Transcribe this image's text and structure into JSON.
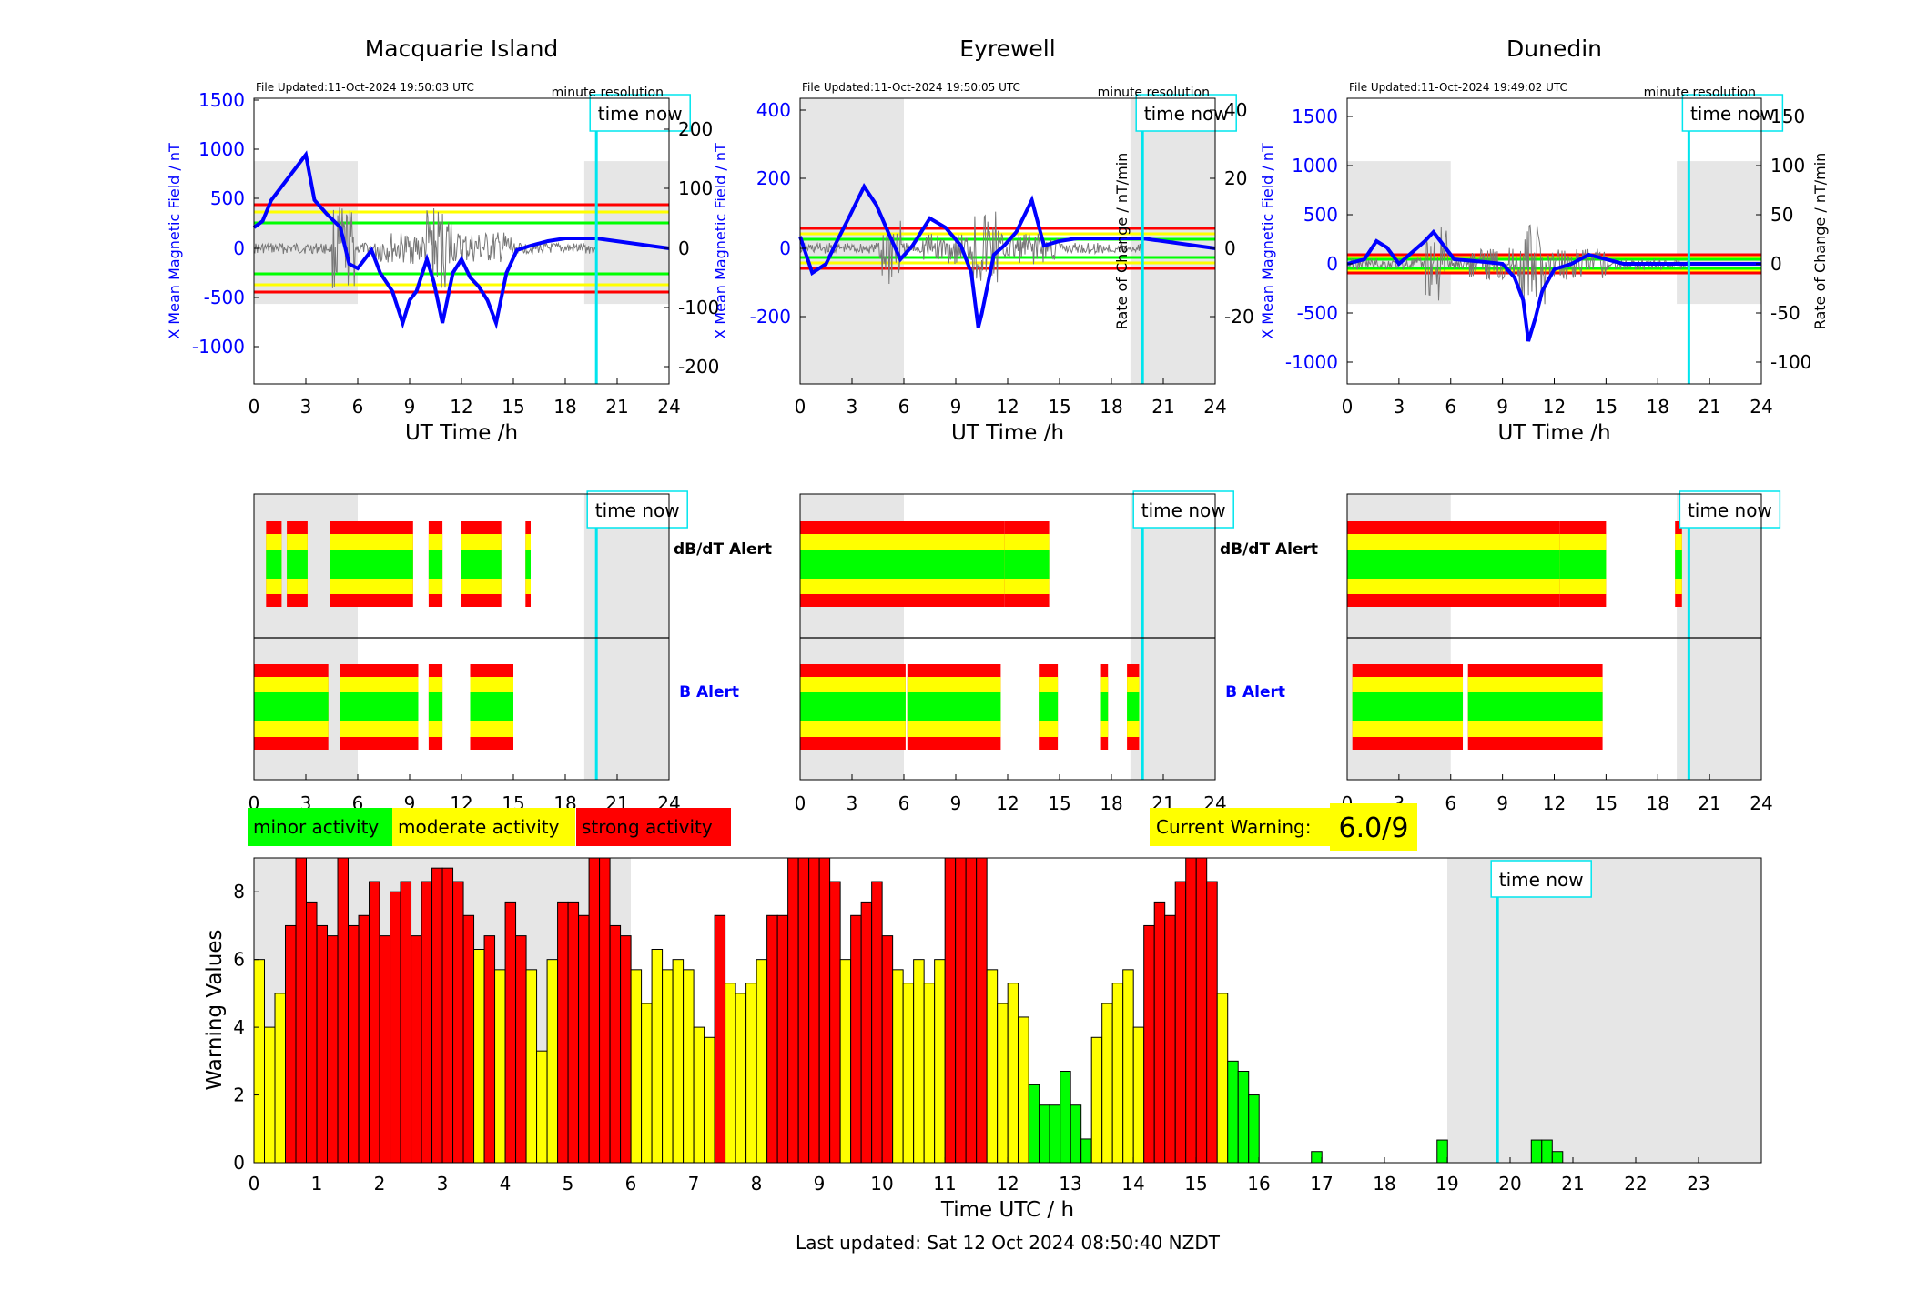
{
  "colors": {
    "minor": "#00ff00",
    "moderate": "#ffff00",
    "strong": "#ff0000",
    "night": "#e6e6e6",
    "now": "#00e5ee",
    "field": "#0000ff",
    "rate": "#777777"
  },
  "now_hour": 19.8,
  "stations": [
    {
      "name": "Macquarie Island",
      "updated": "File Updated:11-Oct-2024 19:50:03 UTC",
      "resolution": "minute resolution",
      "time_now": "time now",
      "ylabel_left": "X Mean Magnetic Field / nT",
      "ylabel_right": "",
      "xlabel": "UT Time /h",
      "xticks": [
        "0",
        "3",
        "6",
        "9",
        "12",
        "15",
        "18",
        "21",
        "24"
      ],
      "yticks_left": [
        "1500",
        "1000",
        "500",
        "0",
        "-500",
        "-1000"
      ],
      "yticks_right": [
        "200",
        "100",
        "0",
        "-100",
        "-200"
      ],
      "night": [
        [
          0,
          6
        ],
        [
          19.1,
          24
        ]
      ],
      "dbdt_alert": [
        [
          0.7,
          1.6
        ],
        [
          1.9,
          3.1
        ],
        [
          4.4,
          6.0
        ],
        [
          6.0,
          9.2
        ],
        [
          10.1,
          10.9
        ],
        [
          12.0,
          14.3
        ],
        [
          15.7,
          16.0
        ]
      ],
      "b_alert": [
        [
          0,
          4.3
        ],
        [
          5.0,
          9.5
        ],
        [
          10.1,
          10.9
        ],
        [
          12.5,
          15.0
        ]
      ]
    },
    {
      "name": "Eyrewell",
      "updated": "File Updated:11-Oct-2024 19:50:05 UTC",
      "resolution": "minute resolution",
      "time_now": "time now",
      "ylabel_left": "X Mean Magnetic Field / nT",
      "ylabel_right": "Rate of Change / nT/min",
      "xlabel": "UT Time /h",
      "xticks": [
        "0",
        "3",
        "6",
        "9",
        "12",
        "15",
        "18",
        "21",
        "24"
      ],
      "yticks_left": [
        "400",
        "200",
        "0",
        "-200"
      ],
      "yticks_right": [
        "40",
        "20",
        "0",
        "-20"
      ],
      "night": [
        [
          0,
          6
        ],
        [
          19.1,
          24
        ]
      ],
      "dbdt_alert": [
        [
          0,
          11.8
        ],
        [
          11.8,
          14.4
        ]
      ],
      "b_alert": [
        [
          0,
          6.1
        ],
        [
          6.2,
          11.6
        ],
        [
          13.8,
          14.9
        ],
        [
          17.4,
          17.8
        ],
        [
          18.9,
          19.6
        ]
      ]
    },
    {
      "name": "Dunedin",
      "updated": "File Updated:11-Oct-2024 19:49:02 UTC",
      "resolution": "minute resolution",
      "time_now": "time now",
      "ylabel_left": "X Mean Magnetic Field / nT",
      "ylabel_right": "Rate of Change / nT/min",
      "xlabel": "UT Time /h",
      "xticks": [
        "0",
        "3",
        "6",
        "9",
        "12",
        "15",
        "18",
        "21",
        "24"
      ],
      "yticks_left": [
        "1500",
        "1000",
        "500",
        "0",
        "-500",
        "-1000"
      ],
      "yticks_right": [
        "150",
        "100",
        "50",
        "0",
        "-50",
        "-100"
      ],
      "night": [
        [
          0,
          6
        ],
        [
          19.1,
          24
        ]
      ],
      "dbdt_alert": [
        [
          0,
          12.3
        ],
        [
          12.3,
          15.0
        ],
        [
          19.0,
          19.4
        ]
      ],
      "b_alert": [
        [
          0.3,
          6.7
        ],
        [
          7.0,
          14.8
        ]
      ]
    }
  ],
  "alert_labels": {
    "dbdt": "dB/dT Alert",
    "b": "B Alert"
  },
  "legend": {
    "minor": "minor activity",
    "moderate": "moderate activity",
    "strong": "strong activity"
  },
  "current_warning": {
    "label": "Current Warning:",
    "value": "6.0/9"
  },
  "footer": "Last updated: Sat 12 Oct 2024 08:50:40 NZDT",
  "chart_data": {
    "type": "bar",
    "title": "",
    "xlabel": "Time UTC / h",
    "ylabel": "Warning Values",
    "xlim": [
      0,
      24
    ],
    "ylim": [
      0,
      9
    ],
    "xticks": [
      "0",
      "1",
      "2",
      "3",
      "4",
      "5",
      "6",
      "7",
      "8",
      "9",
      "10",
      "11",
      "12",
      "13",
      "14",
      "15",
      "16",
      "17",
      "18",
      "19",
      "20",
      "21",
      "22",
      "23"
    ],
    "yticks": [
      "0",
      "2",
      "4",
      "6",
      "8"
    ],
    "time_now_label": "time now",
    "night": [
      [
        0,
        6
      ],
      [
        19,
        24
      ]
    ],
    "bin_hours": 0.1667,
    "values": [
      6,
      4,
      5,
      7,
      9,
      7.7,
      7,
      6.7,
      9,
      7,
      7.3,
      8.3,
      6.7,
      8,
      8.3,
      6.7,
      8.3,
      8.7,
      8.7,
      8.3,
      7.3,
      6.3,
      6.7,
      5.7,
      7.7,
      6.7,
      5.7,
      3.3,
      6,
      7.7,
      7.7,
      7.3,
      9,
      9,
      7,
      6.7,
      5.7,
      4.7,
      6.3,
      5.7,
      6,
      5.7,
      4,
      3.7,
      7.3,
      5.3,
      5,
      5.3,
      6,
      7.3,
      7.3,
      9,
      9,
      9,
      9,
      8.3,
      6,
      7.3,
      7.7,
      8.3,
      6.7,
      5.7,
      5.3,
      6,
      5.3,
      6,
      9,
      9,
      9,
      9,
      5.7,
      4.7,
      5.3,
      4.3,
      2.3,
      1.7,
      1.7,
      2.7,
      1.7,
      0.7,
      3.7,
      4.7,
      5.3,
      5.7,
      4,
      7,
      7.7,
      7.3,
      8.3,
      9,
      9,
      8.3,
      5,
      3,
      2.7,
      2,
      0,
      0,
      0,
      0,
      0,
      0.33,
      0,
      0,
      0,
      0,
      0,
      0,
      0,
      0,
      0,
      0,
      0,
      0.67,
      0,
      0,
      0,
      0,
      0,
      0,
      0,
      0,
      0.67,
      0.67,
      0.33
    ]
  }
}
